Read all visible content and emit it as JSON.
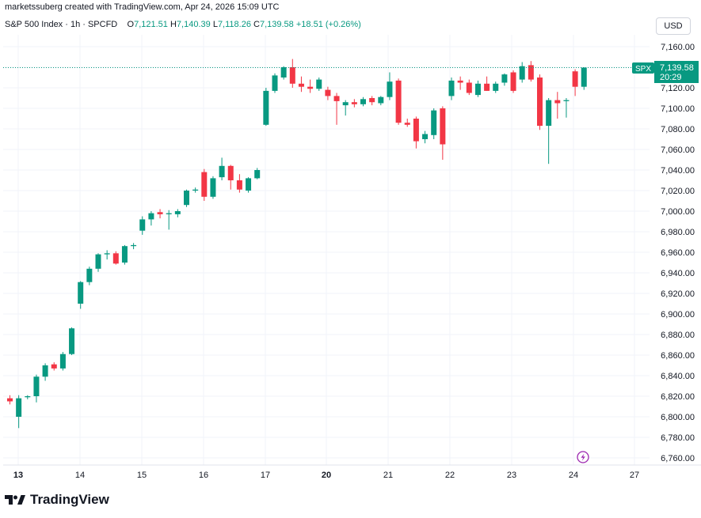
{
  "header": {
    "created_by": "marketssuberg created with TradingView.com, Apr 24, 2026 15:09 UTC",
    "symbol": "S&P 500 Index · 1h · SPCFD",
    "o_label": "O",
    "o_value": "7,121.51",
    "h_label": "H",
    "h_value": "7,140.39",
    "l_label": "L",
    "l_value": "7,118.26",
    "c_label": "C",
    "c_value": "7,139.58",
    "change": "+18.51 (+0.26%)"
  },
  "currency_label": "USD",
  "price_tag": {
    "symbol": "SPX",
    "price": "7,139.58",
    "countdown": "20:29"
  },
  "brand": "TradingView",
  "colors": {
    "up": "#089981",
    "down": "#f23645",
    "grid": "#f0f3fa",
    "text": "#131722",
    "event": "#9c27b0"
  },
  "event_icon": "lightning-icon",
  "chart_data": {
    "type": "candlestick",
    "ylim": [
      6750,
      7175
    ],
    "y_ticks": [
      6760,
      6780,
      6800,
      6820,
      6840,
      6860,
      6880,
      6900,
      6920,
      6940,
      6960,
      6980,
      7000,
      7020,
      7040,
      7060,
      7080,
      7100,
      7120,
      7140,
      7160
    ],
    "y_tick_labels": [
      "6,760.00",
      "6,780.00",
      "6,800.00",
      "6,820.00",
      "6,840.00",
      "6,860.00",
      "6,880.00",
      "6,900.00",
      "6,920.00",
      "6,940.00",
      "6,960.00",
      "6,980.00",
      "7,000.00",
      "7,020.00",
      "7,040.00",
      "7,060.00",
      "7,080.00",
      "7,100.00",
      "7,120.00",
      "7,140.00",
      "7,160.00"
    ],
    "x_labels": [
      "13",
      "14",
      "15",
      "16",
      "17",
      "20",
      "21",
      "22",
      "23",
      "24",
      "27"
    ],
    "x_label_bold": [
      "13",
      "20"
    ],
    "last_price": 7139.58,
    "candles": [
      {
        "o": 6818,
        "h": 6821,
        "l": 6812,
        "c": 6815
      },
      {
        "o": 6800,
        "h": 6821,
        "l": 6789,
        "c": 6818
      },
      {
        "o": 6819,
        "h": 6821,
        "l": 6817,
        "c": 6820
      },
      {
        "o": 6820,
        "h": 6841,
        "l": 6814,
        "c": 6839
      },
      {
        "o": 6839,
        "h": 6852,
        "l": 6835,
        "c": 6850
      },
      {
        "o": 6851,
        "h": 6853,
        "l": 6845,
        "c": 6847
      },
      {
        "o": 6847,
        "h": 6863,
        "l": 6845,
        "c": 6861
      },
      {
        "o": 6861,
        "h": 6887,
        "l": 6860,
        "c": 6886
      },
      {
        "o": 6910,
        "h": 6932,
        "l": 6905,
        "c": 6931
      },
      {
        "o": 6931,
        "h": 6946,
        "l": 6928,
        "c": 6944
      },
      {
        "o": 6944,
        "h": 6959,
        "l": 6941,
        "c": 6958
      },
      {
        "o": 6958,
        "h": 6962,
        "l": 6953,
        "c": 6959
      },
      {
        "o": 6959,
        "h": 6961,
        "l": 6948,
        "c": 6949
      },
      {
        "o": 6950,
        "h": 6967,
        "l": 6948,
        "c": 6966
      },
      {
        "o": 6966,
        "h": 6969,
        "l": 6963,
        "c": 6967
      },
      {
        "o": 6981,
        "h": 6995,
        "l": 6977,
        "c": 6992
      },
      {
        "o": 6992,
        "h": 7000,
        "l": 6986,
        "c": 6998
      },
      {
        "o": 6999,
        "h": 7002,
        "l": 6993,
        "c": 6997
      },
      {
        "o": 6997,
        "h": 7001,
        "l": 6982,
        "c": 6998
      },
      {
        "o": 6997,
        "h": 7002,
        "l": 6994,
        "c": 7000
      },
      {
        "o": 7006,
        "h": 7021,
        "l": 7004,
        "c": 7020
      },
      {
        "o": 7020,
        "h": 7023,
        "l": 7018,
        "c": 7021
      },
      {
        "o": 7038,
        "h": 7041,
        "l": 7010,
        "c": 7014
      },
      {
        "o": 7014,
        "h": 7034,
        "l": 7012,
        "c": 7032
      },
      {
        "o": 7033,
        "h": 7052,
        "l": 7030,
        "c": 7044
      },
      {
        "o": 7044,
        "h": 7045,
        "l": 7021,
        "c": 7030
      },
      {
        "o": 7030,
        "h": 7036,
        "l": 7018,
        "c": 7021
      },
      {
        "o": 7020,
        "h": 7033,
        "l": 7018,
        "c": 7032
      },
      {
        "o": 7032,
        "h": 7042,
        "l": 7031,
        "c": 7040
      },
      {
        "o": 7084,
        "h": 7120,
        "l": 7083,
        "c": 7117
      },
      {
        "o": 7117,
        "h": 7134,
        "l": 7115,
        "c": 7132
      },
      {
        "o": 7130,
        "h": 7141,
        "l": 7128,
        "c": 7140
      },
      {
        "o": 7140,
        "h": 7148,
        "l": 7120,
        "c": 7124
      },
      {
        "o": 7124,
        "h": 7131,
        "l": 7116,
        "c": 7121
      },
      {
        "o": 7121,
        "h": 7128,
        "l": 7115,
        "c": 7119
      },
      {
        "o": 7119,
        "h": 7130,
        "l": 7117,
        "c": 7128
      },
      {
        "o": 7118,
        "h": 7121,
        "l": 7108,
        "c": 7112
      },
      {
        "o": 7112,
        "h": 7115,
        "l": 7084,
        "c": 7107
      },
      {
        "o": 7103,
        "h": 7108,
        "l": 7093,
        "c": 7106
      },
      {
        "o": 7106,
        "h": 7109,
        "l": 7101,
        "c": 7104
      },
      {
        "o": 7104,
        "h": 7111,
        "l": 7102,
        "c": 7109
      },
      {
        "o": 7110,
        "h": 7112,
        "l": 7103,
        "c": 7106
      },
      {
        "o": 7105,
        "h": 7112,
        "l": 7103,
        "c": 7111
      },
      {
        "o": 7111,
        "h": 7135,
        "l": 7108,
        "c": 7126
      },
      {
        "o": 7127,
        "h": 7129,
        "l": 7084,
        "c": 7086
      },
      {
        "o": 7086,
        "h": 7090,
        "l": 7082,
        "c": 7084
      },
      {
        "o": 7090,
        "h": 7092,
        "l": 7061,
        "c": 7068
      },
      {
        "o": 7070,
        "h": 7078,
        "l": 7066,
        "c": 7075
      },
      {
        "o": 7074,
        "h": 7100,
        "l": 7070,
        "c": 7098
      },
      {
        "o": 7100,
        "h": 7102,
        "l": 7050,
        "c": 7065
      },
      {
        "o": 7112,
        "h": 7130,
        "l": 7108,
        "c": 7127
      },
      {
        "o": 7127,
        "h": 7131,
        "l": 7118,
        "c": 7125
      },
      {
        "o": 7125,
        "h": 7128,
        "l": 7113,
        "c": 7115
      },
      {
        "o": 7113,
        "h": 7127,
        "l": 7111,
        "c": 7124
      },
      {
        "o": 7124,
        "h": 7131,
        "l": 7117,
        "c": 7117
      },
      {
        "o": 7117,
        "h": 7126,
        "l": 7115,
        "c": 7124
      },
      {
        "o": 7125,
        "h": 7134,
        "l": 7122,
        "c": 7133
      },
      {
        "o": 7135,
        "h": 7137,
        "l": 7115,
        "c": 7117
      },
      {
        "o": 7128,
        "h": 7145,
        "l": 7125,
        "c": 7141
      },
      {
        "o": 7142,
        "h": 7146,
        "l": 7126,
        "c": 7128
      },
      {
        "o": 7130,
        "h": 7133,
        "l": 7079,
        "c": 7083
      },
      {
        "o": 7083,
        "h": 7110,
        "l": 7046,
        "c": 7108
      },
      {
        "o": 7108,
        "h": 7116,
        "l": 7090,
        "c": 7105
      },
      {
        "o": 7107,
        "h": 7110,
        "l": 7091,
        "c": 7108
      },
      {
        "o": 7136,
        "h": 7138,
        "l": 7112,
        "c": 7121
      },
      {
        "o": 7121,
        "h": 7140,
        "l": 7118,
        "c": 7139.58
      }
    ]
  }
}
